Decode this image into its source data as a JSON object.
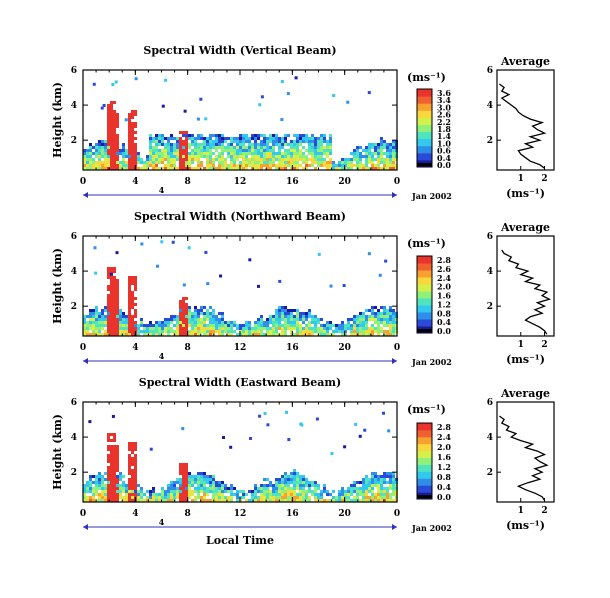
{
  "colors": {
    "colormap": [
      "#1a1aa0",
      "#2a4bd8",
      "#2f8fe8",
      "#33c8ee",
      "#4fe3c0",
      "#8ff07a",
      "#d4f04a",
      "#f8d83c",
      "#f8a030",
      "#f06030",
      "#e8342c"
    ],
    "background": "#ffffff",
    "axis": "#000000",
    "date_marker": "#3030c0"
  },
  "chart_data": [
    {
      "type": "heatmap",
      "title": "Spectral Width (Vertical Beam)",
      "ylabel": "Height (km)",
      "xlabel": "",
      "x_ticks": [
        "0",
        "4",
        "8",
        "12",
        "16",
        "20",
        "0"
      ],
      "y_ticks": [
        "2",
        "4",
        "6"
      ],
      "xlim": [
        0,
        24
      ],
      "ylim": [
        0.3,
        6
      ],
      "date_label": "Jan 2002",
      "date_marker_label": "4",
      "colorbar": {
        "unit": "(ms⁻¹)",
        "ticks": [
          "3.6",
          "3.4",
          "3.0",
          "2.6",
          "2.2",
          "1.8",
          "1.4",
          "1.0",
          "0.6",
          "0.4",
          "0.0"
        ],
        "range": [
          0,
          3.6
        ]
      },
      "profile": {
        "title": "Average",
        "xlabel": "(ms⁻¹)",
        "x_ticks": [
          "1",
          "2"
        ],
        "y_ticks": [
          "2",
          "4",
          "6"
        ],
        "xlim": [
          0,
          2.4
        ],
        "ylim": [
          0.3,
          6
        ],
        "height": [
          0.4,
          0.6,
          0.8,
          1.0,
          1.2,
          1.4,
          1.6,
          1.8,
          2.0,
          2.2,
          2.4,
          2.6,
          2.8,
          3.0,
          3.2,
          3.4,
          3.6,
          3.8,
          4.0,
          4.2,
          4.4,
          4.6,
          4.8,
          5.0,
          5.2
        ],
        "width": [
          2.0,
          1.8,
          1.4,
          1.2,
          1.0,
          0.9,
          1.5,
          1.2,
          1.8,
          1.4,
          2.0,
          1.7,
          1.5,
          1.9,
          1.4,
          1.1,
          0.9,
          0.8,
          0.6,
          0.4,
          0.2,
          0.5,
          0.2,
          0.3,
          0.1
        ]
      }
    },
    {
      "type": "heatmap",
      "title": "Spectral Width (Northward Beam)",
      "ylabel": "Height (km)",
      "xlabel": "",
      "x_ticks": [
        "0",
        "4",
        "8",
        "12",
        "16",
        "20",
        "0"
      ],
      "y_ticks": [
        "2",
        "4",
        "6"
      ],
      "xlim": [
        0,
        24
      ],
      "ylim": [
        0.3,
        6
      ],
      "date_label": "Jan 2002",
      "date_marker_label": "4",
      "colorbar": {
        "unit": "(ms⁻¹)",
        "ticks": [
          "2.8",
          "2.6",
          "2.4",
          "2.0",
          "1.6",
          "1.2",
          "0.8",
          "0.4",
          "0.0"
        ],
        "range": [
          0,
          2.8
        ]
      },
      "profile": {
        "title": "Average",
        "xlabel": "(ms⁻¹)",
        "x_ticks": [
          "1",
          "2"
        ],
        "y_ticks": [
          "2",
          "4",
          "6"
        ],
        "xlim": [
          0,
          2.4
        ],
        "ylim": [
          0.3,
          6
        ],
        "height": [
          0.4,
          0.6,
          0.8,
          1.0,
          1.2,
          1.4,
          1.6,
          1.8,
          2.0,
          2.2,
          2.4,
          2.6,
          2.8,
          3.0,
          3.2,
          3.4,
          3.6,
          3.8,
          4.0,
          4.2,
          4.4,
          4.6,
          4.8,
          5.0,
          5.2
        ],
        "width": [
          2.1,
          2.0,
          1.8,
          1.5,
          1.2,
          1.4,
          1.9,
          1.6,
          2.0,
          1.7,
          2.2,
          1.9,
          2.1,
          1.6,
          1.8,
          1.2,
          1.5,
          1.0,
          1.3,
          0.8,
          0.9,
          0.5,
          0.6,
          0.3,
          0.2
        ]
      }
    },
    {
      "type": "heatmap",
      "title": "Spectral Width (Eastward Beam)",
      "ylabel": "Height (km)",
      "xlabel": "Local Time",
      "x_ticks": [
        "0",
        "4",
        "8",
        "12",
        "16",
        "20",
        "0"
      ],
      "y_ticks": [
        "2",
        "4",
        "6"
      ],
      "xlim": [
        0,
        24
      ],
      "ylim": [
        0.3,
        6
      ],
      "date_label": "Jan 2002",
      "date_marker_label": "4",
      "colorbar": {
        "unit": "(ms⁻¹)",
        "ticks": [
          "2.8",
          "2.4",
          "2.0",
          "1.6",
          "1.2",
          "0.8",
          "0.4",
          "0.0"
        ],
        "range": [
          0,
          2.8
        ]
      },
      "profile": {
        "title": "Average",
        "xlabel": "(ms⁻¹)",
        "x_ticks": [
          "1",
          "2"
        ],
        "y_ticks": [
          "2",
          "4",
          "6"
        ],
        "xlim": [
          0,
          2.4
        ],
        "ylim": [
          0.3,
          6
        ],
        "height": [
          0.4,
          0.6,
          0.8,
          1.0,
          1.2,
          1.4,
          1.6,
          1.8,
          2.0,
          2.2,
          2.4,
          2.6,
          2.8,
          3.0,
          3.2,
          3.4,
          3.6,
          3.8,
          4.0,
          4.2,
          4.4,
          4.6,
          4.8,
          5.0,
          5.2
        ],
        "width": [
          2.0,
          1.9,
          1.6,
          1.2,
          0.9,
          1.3,
          1.8,
          1.5,
          1.9,
          1.6,
          2.1,
          1.8,
          1.6,
          2.0,
          1.7,
          1.2,
          1.5,
          1.0,
          0.6,
          0.8,
          0.4,
          0.5,
          0.2,
          0.3,
          0.1
        ]
      }
    }
  ]
}
